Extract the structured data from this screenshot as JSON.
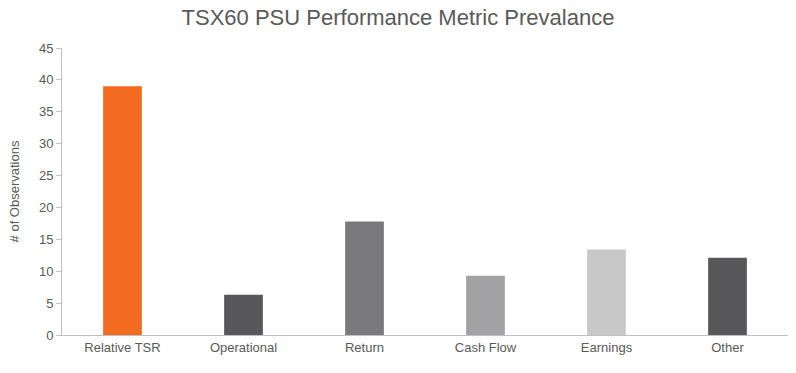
{
  "chart_data": {
    "type": "bar",
    "title": "TSX60 PSU Performance Metric Prevalance",
    "y_label": "# of Observations",
    "categories": [
      "Relative TSR",
      "Operational",
      "Return",
      "Cash Flow",
      "Earnings",
      "Other"
    ],
    "values": [
      39,
      6.3,
      17.8,
      9.3,
      13.4,
      12.1
    ],
    "colors": [
      "#f26b21",
      "#58585b",
      "#7a7a7d",
      "#a2a2a4",
      "#c8c8c9",
      "#58585b"
    ],
    "ylim": [
      0,
      45
    ],
    "yticks": [
      0,
      5,
      10,
      15,
      20,
      25,
      30,
      35,
      40,
      45
    ],
    "grid": false
  }
}
